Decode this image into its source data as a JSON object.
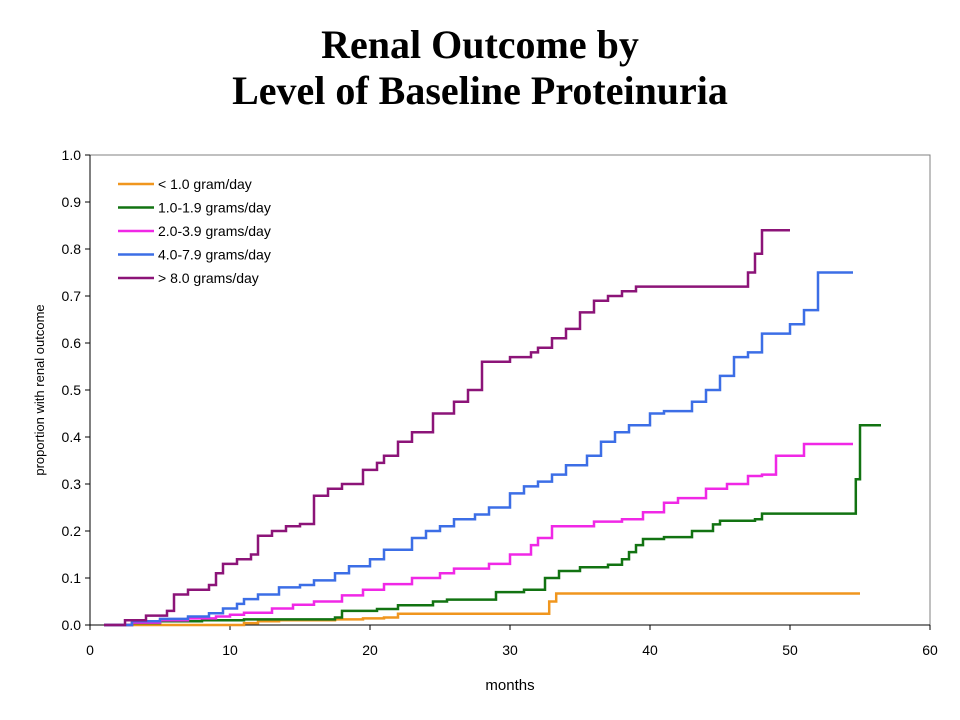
{
  "title_line1": "Renal Outcome by",
  "title_line2": "Level of Baseline Proteinuria",
  "chart_data": {
    "type": "line",
    "xlabel": "months",
    "ylabel": "proportion with renal outcome",
    "xlim": [
      0,
      60
    ],
    "ylim": [
      0,
      1.0
    ],
    "x_ticks": [
      "0",
      "10",
      "20",
      "30",
      "40",
      "50",
      "60"
    ],
    "y_ticks": [
      "0.0",
      "0.1",
      "0.2",
      "0.3",
      "0.4",
      "0.5",
      "0.6",
      "0.7",
      "0.8",
      "0.9",
      "1.0"
    ],
    "grid": false,
    "legend_position": "top-left",
    "series": [
      {
        "name": "< 1.0 gram/day",
        "color": "#f0961e",
        "x": [
          1.0,
          10.0,
          11.0,
          12.0,
          13.5,
          16.5,
          17.5,
          19.5,
          21.0,
          22.0,
          24.0,
          29.0,
          32.5,
          32.8,
          33.3,
          45.0,
          55.0
        ],
        "y": [
          0.0,
          0.0,
          0.004,
          0.008,
          0.01,
          0.01,
          0.012,
          0.014,
          0.016,
          0.024,
          0.024,
          0.024,
          0.024,
          0.05,
          0.067,
          0.067,
          0.067
        ]
      },
      {
        "name": "1.0-1.9 grams/day",
        "color": "#127312",
        "x": [
          1.0,
          3.0,
          5.0,
          8.0,
          11.0,
          17.5,
          18.0,
          20.5,
          22.0,
          24.5,
          25.5,
          29.0,
          31.0,
          32.5,
          33.5,
          35.0,
          37.0,
          38.0,
          38.5,
          39.0,
          39.5,
          41.0,
          43.0,
          44.5,
          45.0,
          47.5,
          48.0,
          54.3,
          54.7,
          55.0,
          56.5
        ],
        "y": [
          0.0,
          0.004,
          0.008,
          0.01,
          0.012,
          0.016,
          0.03,
          0.034,
          0.042,
          0.05,
          0.054,
          0.07,
          0.075,
          0.1,
          0.115,
          0.123,
          0.128,
          0.14,
          0.155,
          0.17,
          0.183,
          0.187,
          0.2,
          0.214,
          0.222,
          0.225,
          0.237,
          0.237,
          0.31,
          0.425,
          0.425
        ]
      },
      {
        "name": "2.0-3.9 grams/day",
        "color": "#f028e6",
        "x": [
          1.0,
          3.0,
          5.0,
          7.0,
          9.0,
          10.0,
          11.0,
          13.0,
          14.5,
          16.0,
          18.0,
          19.5,
          21.0,
          23.0,
          25.0,
          26.0,
          28.5,
          30.0,
          31.5,
          32.0,
          33.0,
          36.0,
          38.0,
          39.5,
          41.0,
          42.0,
          44.0,
          45.5,
          47.0,
          48.0,
          49.0,
          51.0,
          54.5
        ],
        "y": [
          0.0,
          0.005,
          0.01,
          0.014,
          0.018,
          0.022,
          0.026,
          0.035,
          0.043,
          0.05,
          0.063,
          0.075,
          0.087,
          0.1,
          0.11,
          0.12,
          0.13,
          0.15,
          0.17,
          0.185,
          0.21,
          0.22,
          0.225,
          0.24,
          0.26,
          0.27,
          0.29,
          0.3,
          0.317,
          0.32,
          0.36,
          0.385,
          0.385
        ]
      },
      {
        "name": "4.0-7.9 grams/day",
        "color": "#3c6ee6",
        "x": [
          1.0,
          3.0,
          5.0,
          7.0,
          8.5,
          9.5,
          10.5,
          11.0,
          12.0,
          13.5,
          15.0,
          16.0,
          17.5,
          18.5,
          20.0,
          21.0,
          23.0,
          24.0,
          25.0,
          26.0,
          27.5,
          28.5,
          30.0,
          31.0,
          32.0,
          33.0,
          34.0,
          35.5,
          36.5,
          37.5,
          38.5,
          40.0,
          41.0,
          43.0,
          44.0,
          45.0,
          46.0,
          47.0,
          48.0,
          50.0,
          51.0,
          52.0,
          54.5
        ],
        "y": [
          0.0,
          0.008,
          0.013,
          0.018,
          0.025,
          0.035,
          0.045,
          0.055,
          0.065,
          0.08,
          0.085,
          0.095,
          0.11,
          0.125,
          0.14,
          0.16,
          0.185,
          0.2,
          0.21,
          0.225,
          0.235,
          0.25,
          0.28,
          0.295,
          0.305,
          0.32,
          0.34,
          0.36,
          0.39,
          0.41,
          0.425,
          0.45,
          0.455,
          0.475,
          0.5,
          0.53,
          0.57,
          0.58,
          0.62,
          0.64,
          0.67,
          0.75,
          0.75
        ]
      },
      {
        "name": "> 8.0 grams/day",
        "color": "#8c1478",
        "x": [
          1.0,
          2.5,
          4.0,
          5.5,
          6.0,
          7.0,
          8.5,
          9.0,
          9.5,
          10.5,
          11.5,
          12.0,
          13.0,
          14.0,
          15.0,
          16.0,
          17.0,
          18.0,
          19.5,
          20.5,
          21.0,
          22.0,
          23.0,
          24.5,
          26.0,
          27.0,
          28.0,
          30.0,
          31.5,
          32.0,
          33.0,
          34.0,
          35.0,
          36.0,
          37.0,
          38.0,
          39.0,
          40.0,
          46.0,
          47.0,
          47.5,
          48.0,
          50.0
        ],
        "y": [
          0.0,
          0.01,
          0.02,
          0.03,
          0.065,
          0.075,
          0.085,
          0.11,
          0.13,
          0.14,
          0.15,
          0.19,
          0.2,
          0.21,
          0.215,
          0.275,
          0.29,
          0.3,
          0.33,
          0.345,
          0.36,
          0.39,
          0.41,
          0.45,
          0.475,
          0.5,
          0.56,
          0.57,
          0.58,
          0.59,
          0.61,
          0.63,
          0.665,
          0.69,
          0.7,
          0.71,
          0.72,
          0.72,
          0.72,
          0.75,
          0.79,
          0.84,
          0.84
        ]
      }
    ]
  }
}
